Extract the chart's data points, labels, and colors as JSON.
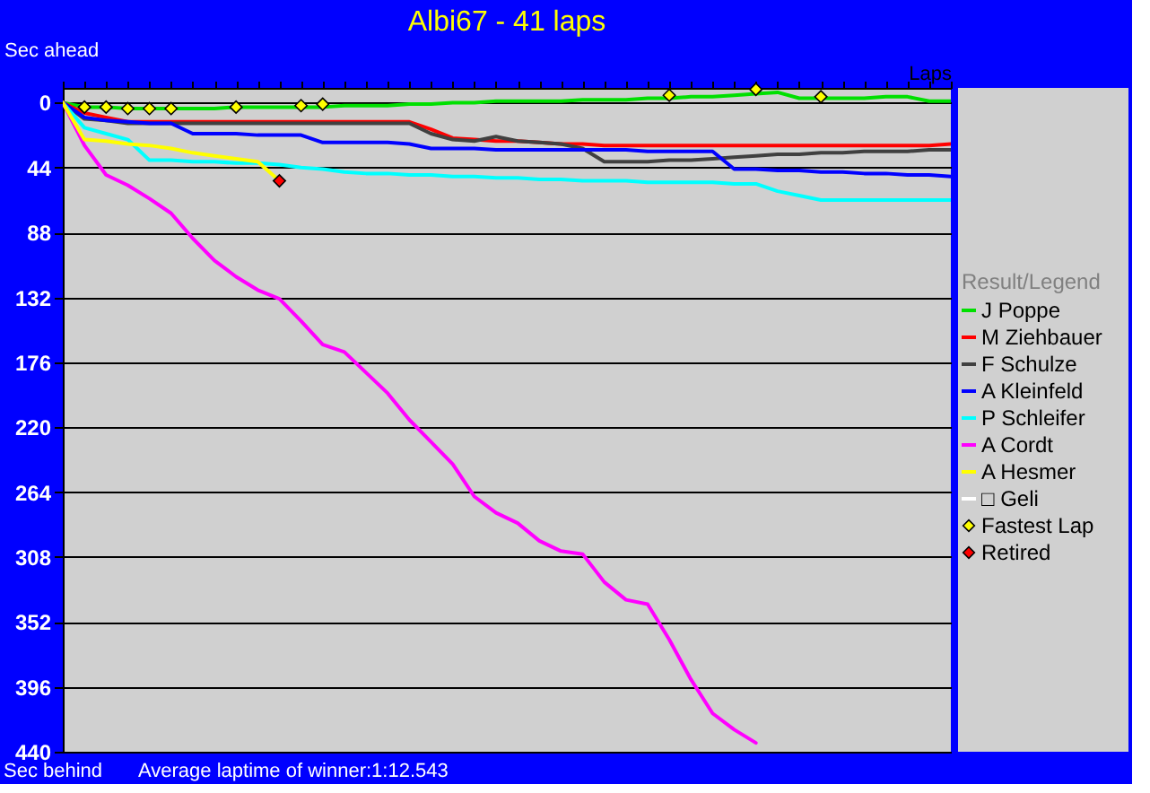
{
  "chart_data": {
    "type": "line",
    "title": "Albi67 - 41 laps",
    "ylabel": "Sec ahead",
    "xlabel": "Laps",
    "legend_title": "Result/Legend",
    "annotations": [
      "Sec behind",
      "Average laptime of winner:1:12.543"
    ],
    "categories": [
      null,
      null,
      null,
      null,
      null,
      null,
      null,
      null,
      null,
      null,
      null,
      null,
      null,
      null,
      null,
      null,
      null,
      null,
      null,
      null,
      null,
      null,
      null,
      null,
      null,
      null,
      null,
      null,
      null,
      null,
      null,
      null,
      null,
      null,
      null,
      null,
      null,
      null,
      null,
      null,
      null,
      null
    ],
    "ylim": [
      440,
      -10
    ],
    "yticks": [
      0,
      44,
      88,
      132,
      176,
      220,
      264,
      308,
      352,
      396,
      440
    ],
    "grid": "y",
    "legend": "right",
    "tick_labels": "y",
    "line_style": "solid",
    "series": [
      {
        "name": "J Poppe",
        "color": "#00e000",
        "values": [
          0,
          3,
          3,
          4,
          4,
          4,
          4,
          4,
          3,
          3,
          3,
          3,
          3,
          2,
          2,
          2,
          1,
          1,
          0,
          0,
          -1,
          -1,
          -1,
          -1,
          -2,
          -2,
          -2,
          -3,
          -3,
          -4,
          -4,
          -5,
          -6,
          -7,
          -3,
          -3,
          -3,
          -3,
          -4,
          -4,
          -1,
          -1
        ]
      },
      {
        "name": "M Ziehbauer",
        "color": "#ff0000",
        "values": [
          0,
          7,
          10,
          13,
          13,
          13,
          13,
          13,
          13,
          13,
          13,
          13,
          13,
          13,
          13,
          13,
          13,
          18,
          24,
          25,
          26,
          26,
          27,
          28,
          28,
          29,
          29,
          29,
          29,
          29,
          29,
          29,
          29,
          29,
          29,
          29,
          29,
          29,
          29,
          29,
          29,
          28
        ]
      },
      {
        "name": "F Schulze",
        "color": "#404040",
        "values": [
          0,
          11,
          12,
          14,
          14,
          14,
          14,
          14,
          14,
          14,
          14,
          14,
          14,
          14,
          14,
          14,
          14,
          21,
          25,
          26,
          23,
          26,
          27,
          28,
          31,
          40,
          40,
          40,
          39,
          39,
          38,
          37,
          36,
          35,
          35,
          34,
          34,
          33,
          33,
          33,
          32,
          32
        ]
      },
      {
        "name": "A Kleinfeld",
        "color": "#0000ff",
        "values": [
          0,
          10,
          12,
          13,
          14,
          14,
          21,
          21,
          21,
          22,
          22,
          22,
          27,
          27,
          27,
          27,
          28,
          31,
          31,
          31,
          32,
          32,
          32,
          32,
          32,
          32,
          32,
          33,
          33,
          33,
          33,
          45,
          45,
          46,
          46,
          47,
          47,
          48,
          48,
          49,
          49,
          50
        ]
      },
      {
        "name": "P Schleifer",
        "color": "#00ffff",
        "values": [
          0,
          17,
          21,
          25,
          39,
          39,
          40,
          40,
          41,
          41,
          42,
          44,
          45,
          47,
          48,
          48,
          49,
          49,
          50,
          50,
          51,
          51,
          52,
          52,
          53,
          53,
          53,
          54,
          54,
          54,
          54,
          55,
          55,
          60,
          63,
          66,
          66,
          66,
          66,
          66,
          66,
          66
        ]
      },
      {
        "name": "A Cordt",
        "color": "#ff00ff",
        "values": [
          0,
          29,
          49,
          56,
          65,
          75,
          92,
          107,
          118,
          127,
          133,
          148,
          164,
          169,
          183,
          197,
          215,
          230,
          245,
          267,
          278,
          285,
          297,
          304,
          306,
          325,
          337,
          340,
          364,
          391,
          414,
          425,
          434,
          null,
          null,
          null,
          null,
          null,
          null,
          null,
          null,
          null
        ]
      },
      {
        "name": "A Hesmer",
        "color": "#ffff00",
        "values": [
          0,
          25,
          26,
          28,
          29,
          31,
          34,
          36,
          38,
          40,
          53,
          null,
          null,
          null,
          null,
          null,
          null,
          null,
          null,
          null,
          null,
          null,
          null,
          null,
          null,
          null,
          null,
          null,
          null,
          null,
          null,
          null,
          null,
          null,
          null,
          null,
          null,
          null,
          null,
          null,
          null,
          null
        ]
      },
      {
        "name": "□ Geli",
        "color": "#ffffff",
        "values": [
          null,
          null,
          null,
          null,
          null,
          null,
          null,
          null,
          null,
          null,
          null,
          null,
          null,
          null,
          null,
          null,
          null,
          null,
          null,
          null,
          null,
          null,
          null,
          null,
          null,
          null,
          null,
          null,
          null,
          null,
          null,
          null,
          null,
          null,
          null,
          null,
          null,
          null,
          null,
          null,
          null,
          null
        ]
      },
      {
        "name": "Fastest Lap",
        "type": "scatter",
        "marker": "diamond",
        "color": "#ffff00",
        "values": [
          null,
          3,
          3,
          4,
          4,
          4,
          null,
          null,
          3,
          null,
          null,
          2,
          1,
          null,
          null,
          null,
          null,
          null,
          null,
          null,
          null,
          null,
          null,
          null,
          null,
          null,
          null,
          null,
          -5,
          null,
          null,
          null,
          -9,
          null,
          null,
          -4,
          null,
          null,
          null,
          null,
          null,
          null
        ]
      },
      {
        "name": "Retired",
        "type": "scatter",
        "marker": "diamond",
        "color": "#ff0000",
        "values": [
          null,
          null,
          null,
          null,
          null,
          null,
          null,
          null,
          null,
          null,
          53,
          null,
          null,
          null,
          null,
          null,
          null,
          null,
          null,
          null,
          null,
          null,
          null,
          null,
          null,
          null,
          null,
          null,
          null,
          null,
          null,
          null,
          null,
          null,
          null,
          null,
          null,
          null,
          null,
          null,
          null,
          null
        ]
      }
    ]
  }
}
